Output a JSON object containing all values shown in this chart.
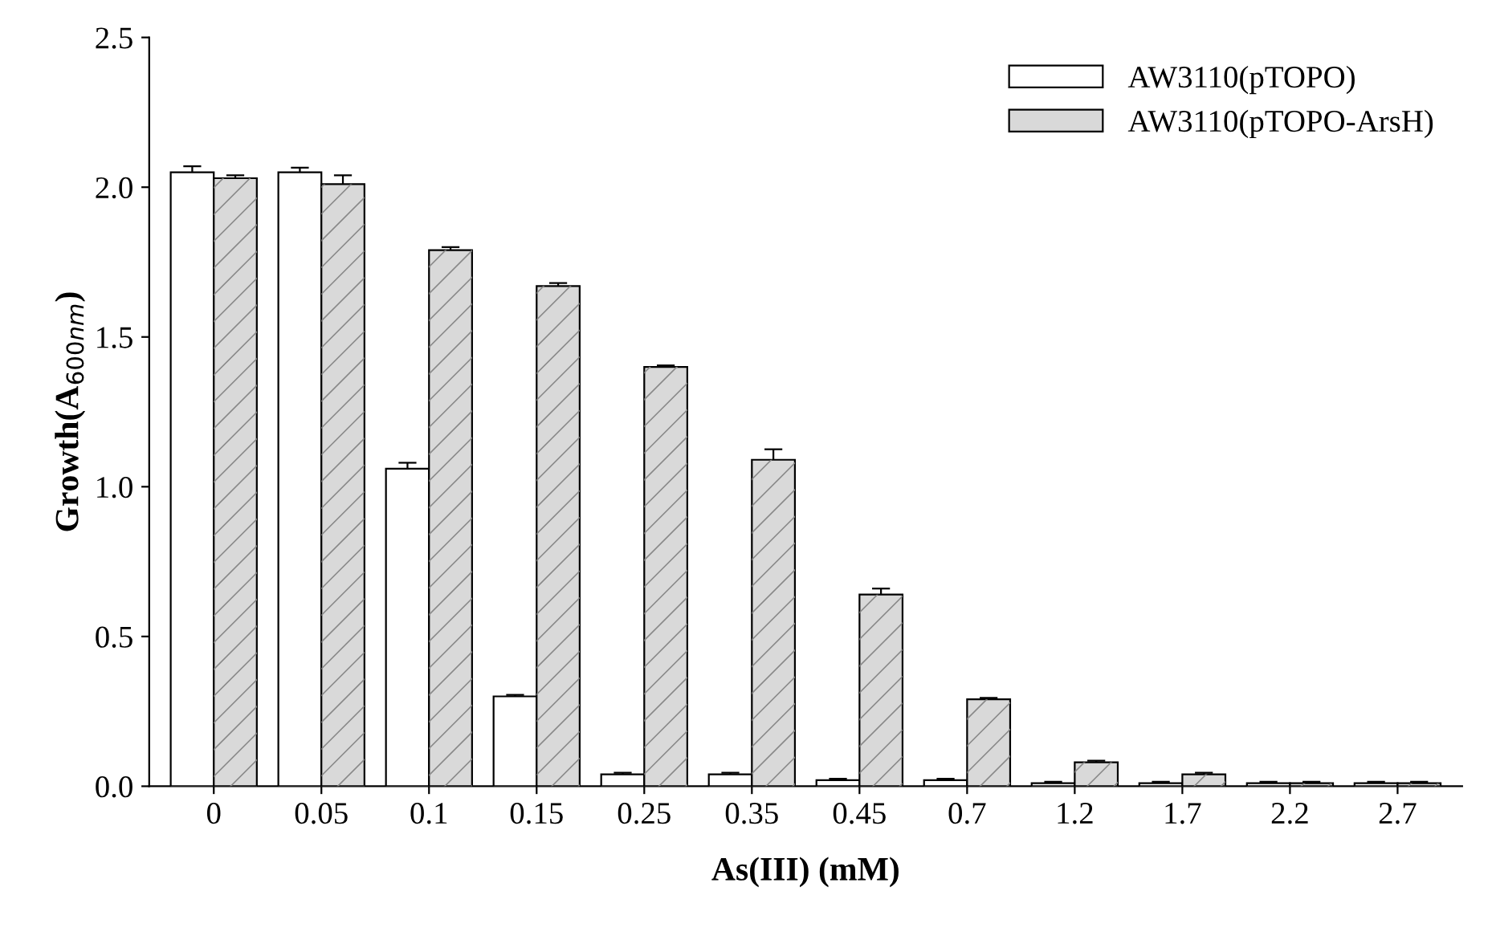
{
  "chart_data": {
    "type": "bar",
    "xlabel": "As(III) (mM)",
    "ylabel": "Growth(A$_{600nm}$)",
    "categories": [
      "0",
      "0.05",
      "0.1",
      "0.15",
      "0.25",
      "0.35",
      "0.45",
      "0.7",
      "1.2",
      "1.7",
      "2.2",
      "2.7"
    ],
    "series": [
      {
        "name": "AW3110(pTOPO)",
        "color": "#ffffff",
        "values": [
          2.05,
          2.05,
          1.06,
          0.3,
          0.04,
          0.04,
          0.02,
          0.02,
          0.01,
          0.01,
          0.01,
          0.01
        ],
        "errors": [
          0.02,
          0.015,
          0.02,
          0.005,
          0.005,
          0.005,
          0.005,
          0.005,
          0.005,
          0.005,
          0.005,
          0.005
        ]
      },
      {
        "name": "AW3110(pTOPO-ArsH)",
        "color": "#d9d9d9",
        "values": [
          2.03,
          2.01,
          1.79,
          1.67,
          1.4,
          1.09,
          0.64,
          0.29,
          0.08,
          0.04,
          0.01,
          0.01
        ],
        "errors": [
          0.01,
          0.03,
          0.01,
          0.01,
          0.005,
          0.035,
          0.02,
          0.005,
          0.005,
          0.005,
          0.005,
          0.005
        ]
      }
    ],
    "ylim": [
      0,
      2.5
    ],
    "yticks": [
      {
        "value": 0,
        "label": "0.0"
      },
      {
        "value": 0.5,
        "label": "0.5"
      },
      {
        "value": 1,
        "label": "1.0"
      },
      {
        "value": 1.5,
        "label": "1.5"
      },
      {
        "value": 2,
        "label": "2.0"
      },
      {
        "value": 2.5,
        "label": "2.5"
      }
    ],
    "legend": "top right",
    "grid": false
  }
}
